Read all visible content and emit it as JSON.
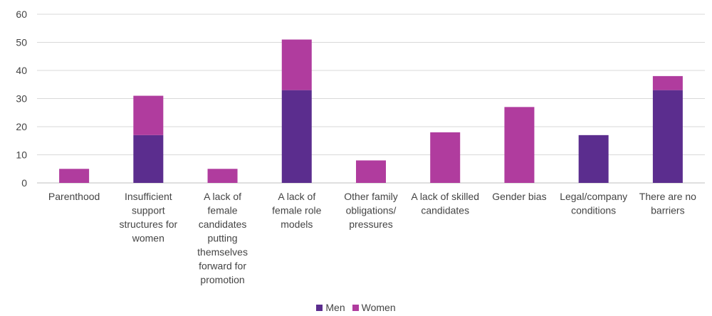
{
  "chart_data": {
    "type": "bar",
    "stacked": true,
    "title": "",
    "xlabel": "",
    "ylabel": "",
    "ylim": [
      0,
      60
    ],
    "yticks": [
      0,
      10,
      20,
      30,
      40,
      50,
      60
    ],
    "grid": true,
    "legend_position": "bottom",
    "categories": [
      "Parenthood",
      "Insufficient support structures for women",
      "A lack of female candidates putting themselves forward for promotion",
      "A lack of female role models",
      "Other family obligations/ pressures",
      "A lack of skilled candidates",
      "Gender bias",
      "Legal/company conditions",
      "There are no barriers"
    ],
    "category_lines": [
      [
        "Parenthood"
      ],
      [
        "Insufficient",
        "support",
        "structures for",
        "women"
      ],
      [
        "A lack of",
        "female",
        "candidates",
        "putting",
        "themselves",
        "forward for",
        "promotion"
      ],
      [
        "A lack of",
        "female role",
        "models"
      ],
      [
        "Other family",
        "obligations/",
        "pressures"
      ],
      [
        "A lack of skilled",
        "candidates"
      ],
      [
        "Gender bias"
      ],
      [
        "Legal/company",
        "conditions"
      ],
      [
        "There are no",
        "barriers"
      ]
    ],
    "series": [
      {
        "name": "Men",
        "color": "#5b2d8e",
        "values": [
          0,
          17,
          0,
          33,
          0,
          0,
          0,
          17,
          33
        ]
      },
      {
        "name": "Women",
        "color": "#b03c9e",
        "values": [
          5,
          14,
          5,
          18,
          8,
          18,
          27,
          0,
          5
        ]
      }
    ]
  }
}
